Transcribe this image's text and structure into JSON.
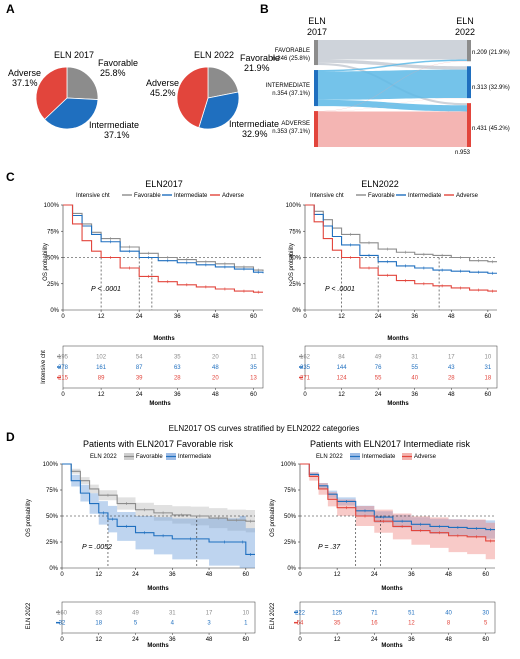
{
  "colors": {
    "favorable": "#8c8c8c",
    "intermediate": "#1f6fbf",
    "adverse": "#e2453c",
    "sankey_fav": "#c6cbd3",
    "sankey_int": "#5cb8e6",
    "sankey_adv": "#f2a8a6"
  },
  "panels": {
    "A": "A",
    "B": "B",
    "C": "C",
    "D": "D"
  },
  "panel_a": {
    "pie_2017": {
      "title": "ELN 2017",
      "labels": [
        "Favorable",
        "Intermediate",
        "Adverse"
      ],
      "pct_labels": [
        "25.8%",
        "37.1%",
        "37.1%"
      ],
      "values": [
        25.8,
        37.1,
        37.1
      ]
    },
    "pie_2022": {
      "title": "ELN 2022",
      "labels": [
        "Favorable",
        "Intermediate",
        "Adverse"
      ],
      "pct_labels": [
        "21.9%",
        "32.9%",
        "45.2%"
      ],
      "values": [
        21.9,
        32.9,
        45.2
      ]
    }
  },
  "panel_b": {
    "left_title": [
      "ELN",
      "2017"
    ],
    "right_title": [
      "ELN",
      "2022"
    ],
    "left_nodes": [
      {
        "name": "FAVORABLE",
        "count": "n.246 (25.8%)",
        "n": 246
      },
      {
        "name": "INTERMEDIATE",
        "count": "n.354 (37.1%)",
        "n": 354
      },
      {
        "name": "ADVERSE",
        "count": "n.353 (37.1%)",
        "n": 353
      }
    ],
    "right_nodes": [
      {
        "count": "n.209 (21.9%)",
        "n": 209
      },
      {
        "count": "n.313 (32.9%)",
        "n": 313
      },
      {
        "count": "n.431 (45.2%)",
        "n": 431
      }
    ],
    "total": "n.953"
  },
  "panel_c": {
    "left": {
      "title": "ELN2017",
      "legend_title": "Intensive cht",
      "legend": [
        "Favorable",
        "Intermediate",
        "Adverse"
      ],
      "ylabel": "OS probability",
      "xlabel": "Months",
      "p_value": "P < .0001",
      "risk_title": "Intensive cht",
      "risk_xlabel": "Months",
      "risk_table": [
        [
          "195",
          "102",
          "54",
          "35",
          "20",
          "11"
        ],
        [
          "278",
          "161",
          "87",
          "63",
          "48",
          "35"
        ],
        [
          "215",
          "89",
          "39",
          "28",
          "20",
          "13"
        ]
      ]
    },
    "right": {
      "title": "ELN2022",
      "legend_title": "Intensive cht",
      "legend": [
        "Favorable",
        "Intermediate",
        "Adverse"
      ],
      "ylabel": "OS probability",
      "xlabel": "Months",
      "p_value": "P < .0001",
      "risk_xlabel": "Months",
      "risk_table": [
        [
          "162",
          "84",
          "49",
          "31",
          "17",
          "10"
        ],
        [
          "235",
          "144",
          "76",
          "55",
          "43",
          "31"
        ],
        [
          "271",
          "124",
          "55",
          "40",
          "28",
          "18"
        ]
      ]
    }
  },
  "panel_d": {
    "header": "ELN2017 OS curves stratified by ELN2022 categories",
    "left": {
      "title": "Patients with ELN2017 Favorable risk",
      "legend_title": "ELN 2022",
      "legend": [
        "Favorable",
        "Intermediate"
      ],
      "ylabel": "OS probability",
      "xlabel": "Months",
      "p_value": "P = .0052",
      "risk_title": "ELN 2022",
      "risk_xlabel": "Months",
      "risk_table": [
        [
          "160",
          "83",
          "49",
          "31",
          "17",
          "10"
        ],
        [
          "32",
          "18",
          "5",
          "4",
          "3",
          "1"
        ]
      ]
    },
    "right": {
      "title": "Patients with ELN2017 Intermediate risk",
      "legend_title": "ELN 2022",
      "legend": [
        "Intermediate",
        "Adverse"
      ],
      "ylabel": "OS probability",
      "xlabel": "Months",
      "p_value": "P = .37",
      "risk_title": "ELN 2022",
      "risk_xlabel": "Months",
      "risk_table": [
        [
          "222",
          "125",
          "71",
          "51",
          "40",
          "30"
        ],
        [
          "54",
          "35",
          "16",
          "12",
          "8",
          "5"
        ]
      ]
    }
  },
  "chart_data": [
    {
      "type": "pie",
      "title": "ELN 2017",
      "categories": [
        "Favorable",
        "Intermediate",
        "Adverse"
      ],
      "values": [
        25.8,
        37.1,
        37.1
      ]
    },
    {
      "type": "pie",
      "title": "ELN 2022",
      "categories": [
        "Favorable",
        "Intermediate",
        "Adverse"
      ],
      "values": [
        21.9,
        32.9,
        45.2
      ]
    },
    {
      "type": "line",
      "title": "ELN2017",
      "xlabel": "Months",
      "ylabel": "OS probability",
      "xlim": [
        0,
        63
      ],
      "ylim": [
        0,
        100
      ],
      "x_ticks": [
        0,
        12,
        24,
        36,
        48,
        60
      ],
      "y_ticks": [
        "0%",
        "25%",
        "50%",
        "75%",
        "100%"
      ],
      "series": [
        {
          "name": "Favorable",
          "x": [
            0,
            3,
            6,
            9,
            12,
            18,
            24,
            30,
            36,
            42,
            48,
            54,
            60,
            63
          ],
          "y": [
            100,
            92,
            82,
            74,
            68,
            60,
            54,
            50,
            48,
            46,
            44,
            41,
            38,
            37
          ]
        },
        {
          "name": "Intermediate",
          "x": [
            0,
            3,
            6,
            9,
            12,
            18,
            24,
            30,
            36,
            42,
            48,
            54,
            60,
            63
          ],
          "y": [
            100,
            90,
            80,
            72,
            65,
            56,
            50,
            47,
            45,
            43,
            41,
            39,
            36,
            35
          ]
        },
        {
          "name": "Adverse",
          "x": [
            0,
            3,
            6,
            9,
            12,
            18,
            24,
            30,
            36,
            42,
            48,
            54,
            60,
            63
          ],
          "y": [
            100,
            82,
            66,
            56,
            50,
            40,
            32,
            27,
            24,
            22,
            20,
            18,
            17,
            17
          ]
        }
      ],
      "medians": [
        12,
        24,
        28
      ]
    },
    {
      "type": "line",
      "title": "ELN2022",
      "xlabel": "Months",
      "ylabel": "OS probability",
      "xlim": [
        0,
        63
      ],
      "ylim": [
        0,
        100
      ],
      "x_ticks": [
        0,
        12,
        24,
        36,
        48,
        60
      ],
      "y_ticks": [
        "0%",
        "25%",
        "50%",
        "75%",
        "100%"
      ],
      "series": [
        {
          "name": "Favorable",
          "x": [
            0,
            3,
            6,
            9,
            12,
            18,
            24,
            30,
            36,
            42,
            48,
            54,
            60,
            63
          ],
          "y": [
            100,
            94,
            86,
            78,
            72,
            64,
            58,
            55,
            53,
            52,
            50,
            47,
            46,
            46
          ]
        },
        {
          "name": "Intermediate",
          "x": [
            0,
            3,
            6,
            9,
            12,
            18,
            24,
            30,
            36,
            42,
            48,
            54,
            60,
            63
          ],
          "y": [
            100,
            91,
            80,
            70,
            62,
            52,
            46,
            42,
            40,
            38,
            37,
            36,
            35,
            35
          ]
        },
        {
          "name": "Adverse",
          "x": [
            0,
            3,
            6,
            9,
            12,
            18,
            24,
            30,
            36,
            42,
            48,
            54,
            60,
            63
          ],
          "y": [
            100,
            84,
            68,
            57,
            50,
            40,
            33,
            28,
            25,
            23,
            21,
            19,
            18,
            18
          ]
        }
      ],
      "medians": [
        12,
        24,
        44
      ]
    },
    {
      "type": "line",
      "title": "Patients with ELN2017 Favorable risk",
      "xlabel": "Months",
      "ylabel": "OS probability",
      "xlim": [
        0,
        63
      ],
      "ylim": [
        0,
        100
      ],
      "x_ticks": [
        0,
        12,
        24,
        36,
        48,
        60
      ],
      "y_ticks": [
        "0%",
        "25%",
        "50%",
        "75%",
        "100%"
      ],
      "series": [
        {
          "name": "Favorable",
          "x": [
            0,
            3,
            6,
            9,
            12,
            18,
            24,
            30,
            36,
            42,
            48,
            54,
            60,
            63
          ],
          "y": [
            100,
            93,
            84,
            76,
            70,
            62,
            56,
            53,
            51,
            50,
            48,
            46,
            45,
            45
          ]
        },
        {
          "name": "Intermediate",
          "x": [
            0,
            3,
            6,
            9,
            12,
            15,
            18,
            24,
            30,
            36,
            48,
            58,
            60,
            63
          ],
          "y": [
            100,
            84,
            72,
            62,
            53,
            47,
            40,
            34,
            31,
            28,
            25,
            25,
            13,
            13
          ]
        }
      ],
      "medians": [
        15,
        44
      ]
    },
    {
      "type": "line",
      "title": "Patients with ELN2017 Intermediate risk",
      "xlabel": "Months",
      "ylabel": "OS probability",
      "xlim": [
        0,
        63
      ],
      "ylim": [
        0,
        100
      ],
      "x_ticks": [
        0,
        12,
        24,
        36,
        48,
        60
      ],
      "y_ticks": [
        "0%",
        "25%",
        "50%",
        "75%",
        "100%"
      ],
      "series": [
        {
          "name": "Intermediate",
          "x": [
            0,
            3,
            6,
            9,
            12,
            18,
            24,
            30,
            36,
            42,
            48,
            54,
            60,
            63
          ],
          "y": [
            100,
            90,
            79,
            71,
            64,
            55,
            49,
            45,
            42,
            40,
            39,
            38,
            37,
            37
          ]
        },
        {
          "name": "Adverse",
          "x": [
            0,
            3,
            6,
            9,
            12,
            18,
            24,
            30,
            36,
            42,
            48,
            54,
            60,
            63
          ],
          "y": [
            100,
            88,
            76,
            66,
            58,
            50,
            45,
            40,
            36,
            34,
            31,
            30,
            26,
            26
          ]
        }
      ],
      "medians": [
        18,
        26
      ]
    }
  ]
}
